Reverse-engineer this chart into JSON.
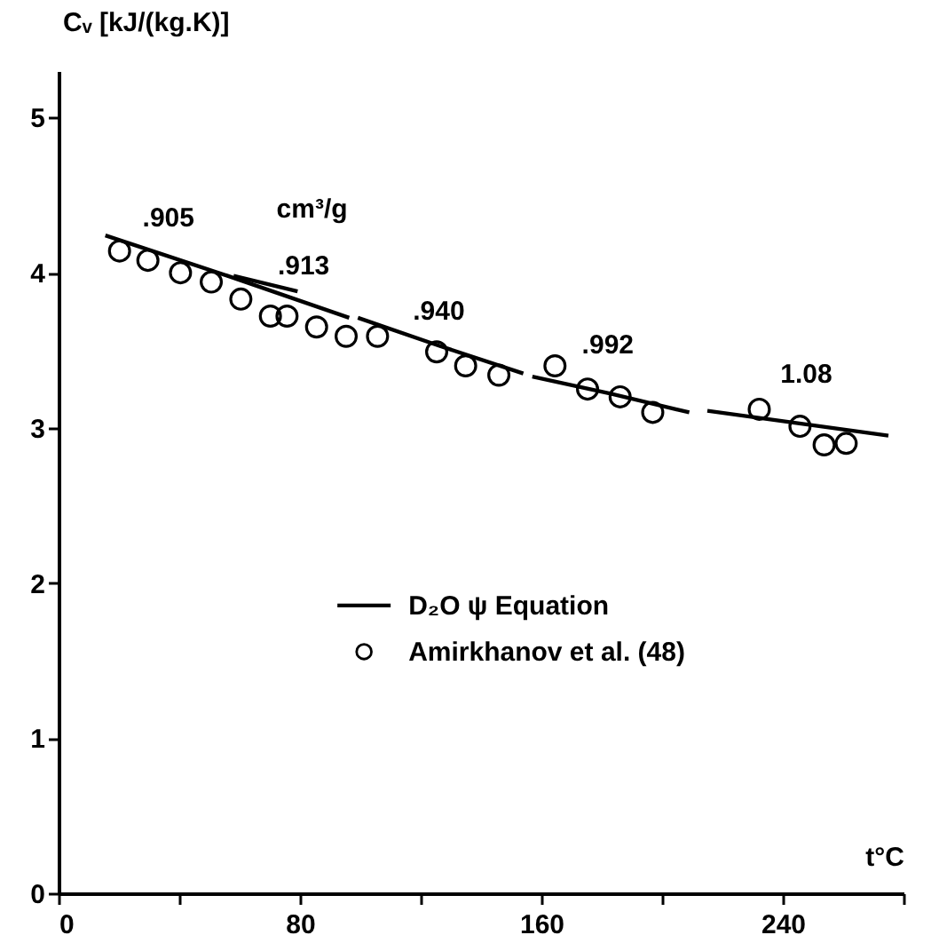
{
  "chart_data": {
    "type": "line",
    "ylabel": "Cᵥ [kJ/(kg.K)]",
    "xlabel": "t°C",
    "xlim": [
      0,
      280
    ],
    "ylim": [
      0,
      5.3
    ],
    "xticks": [
      0,
      {
        "value": 40,
        "label": null
      },
      80,
      {
        "value": 120,
        "label": null
      },
      160,
      {
        "value": 200,
        "label": null
      },
      240,
      {
        "value": 280,
        "label": null
      }
    ],
    "yticks": [
      0,
      1,
      2,
      3,
      4,
      5
    ],
    "grid": false,
    "legend": "center",
    "series": [
      {
        "name": "D₂O ψ Equation",
        "color": "#000000",
        "line_style": "solid",
        "x": [
          15.5,
          56,
          96.3
        ],
        "values": [
          4.24,
          3.98,
          3.71
        ]
      },
      {
        "color": "#000000",
        "line_style": "solid",
        "x": [
          58,
          79.2
        ],
        "values": [
          3.98,
          3.88
        ]
      },
      {
        "color": "#000000",
        "line_style": "solid",
        "x": [
          99.2,
          126,
          154
        ],
        "values": [
          3.71,
          3.53,
          3.35
        ]
      },
      {
        "color": "#000000",
        "line_style": "solid",
        "x": [
          157,
          183,
          209
        ],
        "values": [
          3.33,
          3.22,
          3.1
        ]
      },
      {
        "color": "#000000",
        "line_style": "solid",
        "x": [
          215,
          245,
          275
        ],
        "values": [
          3.11,
          3.03,
          2.95
        ]
      },
      {
        "name": "Amirkhanov et al. (48)",
        "type": "scatter",
        "marker": "circle",
        "color": "#000000",
        "x": [
          20.2,
          29.6,
          40.4,
          50.6,
          60.4,
          70.2,
          75.7,
          85.5,
          95.3,
          105.7,
          125.3,
          134.9,
          145.9,
          164.5,
          175.3,
          186.1,
          196.9,
          232.2,
          245.7,
          253.7,
          261
        ],
        "values": [
          4.14,
          4.08,
          4.0,
          3.94,
          3.83,
          3.72,
          3.72,
          3.65,
          3.59,
          3.59,
          3.49,
          3.4,
          3.34,
          3.4,
          3.25,
          3.2,
          3.1,
          3.12,
          3.01,
          2.89,
          2.9
        ]
      }
    ],
    "annotations": [
      ".905",
      "cm³/g",
      ".913",
      ".940",
      ".992",
      "1.08"
    ]
  }
}
